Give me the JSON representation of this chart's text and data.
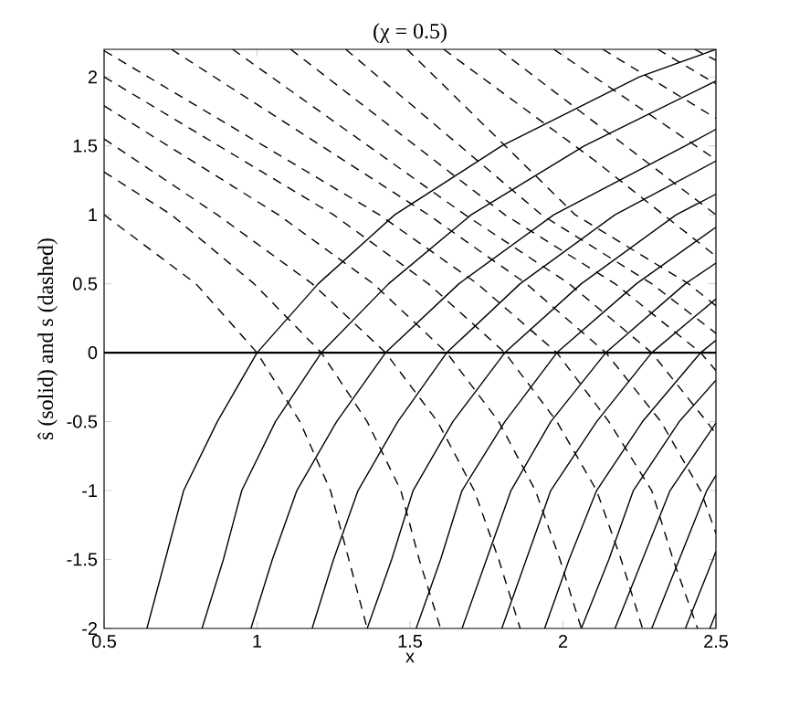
{
  "chart_data": {
    "type": "line",
    "title": "(χ = 0.5)",
    "xlabel": "x",
    "ylabel": "ŝ (solid) and s (dashed)",
    "xlim": [
      0.5,
      2.5
    ],
    "ylim": [
      -2,
      2.2
    ],
    "xticks": [
      0.5,
      1,
      1.5,
      2,
      2.5
    ],
    "yticks": [
      -2,
      -1.5,
      -1,
      -0.5,
      0,
      0.5,
      1,
      1.5,
      2
    ],
    "ref_lines": [
      {
        "axis": "y",
        "value": 0,
        "color": "#000000"
      }
    ],
    "series": [
      {
        "color": "#000000",
        "line_style": "solid",
        "x": [
          0.64,
          0.7,
          0.76,
          0.87,
          1.0,
          1.2,
          1.45,
          1.8,
          2.25,
          2.5
        ],
        "values": [
          -2,
          -1.5,
          -1,
          -0.5,
          0,
          0.5,
          1,
          1.5,
          2,
          2.2
        ]
      },
      {
        "color": "#000000",
        "line_style": "solid",
        "x": [
          0.82,
          0.89,
          0.95,
          1.06,
          1.21,
          1.43,
          1.7,
          2.07,
          2.5
        ],
        "values": [
          -2,
          -1.5,
          -1,
          -0.5,
          0,
          0.5,
          1,
          1.5,
          1.97
        ]
      },
      {
        "color": "#000000",
        "line_style": "solid",
        "x": [
          0.98,
          1.05,
          1.13,
          1.26,
          1.42,
          1.66,
          1.97,
          2.4,
          2.5
        ],
        "values": [
          -2,
          -1.5,
          -1,
          -0.5,
          0,
          0.5,
          1,
          1.5,
          1.62
        ]
      },
      {
        "color": "#000000",
        "line_style": "solid",
        "x": [
          1.18,
          1.25,
          1.33,
          1.46,
          1.62,
          1.86,
          2.17,
          2.5
        ],
        "values": [
          -2,
          -1.5,
          -1,
          -0.5,
          0,
          0.5,
          1,
          1.39
        ]
      },
      {
        "color": "#000000",
        "line_style": "solid",
        "x": [
          1.36,
          1.44,
          1.51,
          1.64,
          1.81,
          2.06,
          2.37,
          2.5
        ],
        "values": [
          -2,
          -1.5,
          -1,
          -0.5,
          0,
          0.5,
          1,
          1.15
        ]
      },
      {
        "color": "#000000",
        "line_style": "solid",
        "x": [
          1.52,
          1.6,
          1.67,
          1.81,
          1.98,
          2.24,
          2.5
        ],
        "values": [
          -2,
          -1.5,
          -1,
          -0.5,
          0,
          0.5,
          0.91
        ]
      },
      {
        "color": "#000000",
        "line_style": "solid",
        "x": [
          1.67,
          1.75,
          1.83,
          1.96,
          2.14,
          2.4,
          2.5
        ],
        "values": [
          -2,
          -1.5,
          -1,
          -0.5,
          0,
          0.5,
          0.65
        ]
      },
      {
        "color": "#000000",
        "line_style": "solid",
        "x": [
          1.8,
          1.88,
          1.96,
          2.11,
          2.29,
          2.5
        ],
        "values": [
          -2,
          -1.5,
          -1,
          -0.5,
          0,
          0.39
        ]
      },
      {
        "color": "#000000",
        "line_style": "solid",
        "x": [
          1.94,
          2.02,
          2.11,
          2.26,
          2.45,
          2.5
        ],
        "values": [
          -2,
          -1.5,
          -1,
          -0.5,
          0,
          0.09
        ]
      },
      {
        "color": "#000000",
        "line_style": "solid",
        "x": [
          2.06,
          2.15,
          2.23,
          2.38,
          2.5
        ],
        "values": [
          -2,
          -1.5,
          -1,
          -0.5,
          -0.2
        ]
      },
      {
        "color": "#000000",
        "line_style": "solid",
        "x": [
          2.17,
          2.26,
          2.35,
          2.5
        ],
        "values": [
          -2,
          -1.5,
          -1,
          -0.51
        ]
      },
      {
        "color": "#000000",
        "line_style": "solid",
        "x": [
          2.29,
          2.38,
          2.47,
          2.5
        ],
        "values": [
          -2,
          -1.5,
          -1,
          -0.89
        ]
      },
      {
        "color": "#000000",
        "line_style": "solid",
        "x": [
          2.4,
          2.49,
          2.5
        ],
        "values": [
          -2,
          -1.5,
          -1.44
        ]
      },
      {
        "color": "#000000",
        "line_style": "solid",
        "x": [
          2.48,
          2.5
        ],
        "values": [
          -2,
          -1.89
        ]
      },
      {
        "color": "#000000",
        "line_style": "dashed",
        "x": [
          0.5,
          0.8,
          1.0,
          1.14,
          1.24,
          1.3,
          1.36
        ],
        "values": [
          1.0,
          0.5,
          0,
          -0.5,
          -1,
          -1.5,
          -2
        ]
      },
      {
        "color": "#000000",
        "line_style": "dashed",
        "x": [
          0.5,
          0.72,
          0.99,
          1.21,
          1.36,
          1.47,
          1.53,
          1.6
        ],
        "values": [
          1.31,
          1,
          0.5,
          0,
          -0.5,
          -1,
          -1.5,
          -2
        ]
      },
      {
        "color": "#000000",
        "line_style": "dashed",
        "x": [
          0.5,
          0.87,
          1.18,
          1.42,
          1.59,
          1.71,
          1.79,
          1.86
        ],
        "values": [
          1.55,
          1,
          0.5,
          0,
          -0.5,
          -1,
          -1.5,
          -2
        ]
      },
      {
        "color": "#000000",
        "line_style": "dashed",
        "x": [
          0.5,
          1.07,
          1.38,
          1.62,
          1.79,
          1.91,
          1.99,
          2.06
        ],
        "values": [
          1.79,
          1,
          0.5,
          0,
          -0.5,
          -1,
          -1.5,
          -2
        ]
      },
      {
        "color": "#000000",
        "line_style": "dashed",
        "x": [
          0.5,
          1.25,
          1.56,
          1.81,
          1.98,
          2.11,
          2.19,
          2.26
        ],
        "values": [
          2.0,
          1,
          0.5,
          0,
          -0.5,
          -1,
          -1.5,
          -2
        ]
      },
      {
        "color": "#000000",
        "line_style": "dashed",
        "x": [
          0.5,
          1.4,
          1.72,
          1.98,
          2.15,
          2.29,
          2.36,
          2.44
        ],
        "values": [
          2.19,
          1,
          0.5,
          0,
          -0.5,
          -1,
          -1.5,
          -2
        ]
      },
      {
        "color": "#000000",
        "line_style": "dashed",
        "x": [
          0.72,
          1.56,
          1.88,
          2.14,
          2.32,
          2.45,
          2.5
        ],
        "values": [
          2.2,
          1,
          0.5,
          0,
          -0.5,
          -1,
          -1.31
        ]
      },
      {
        "color": "#000000",
        "line_style": "dashed",
        "x": [
          0.92,
          1.68,
          2.02,
          2.29,
          2.47,
          2.5
        ],
        "values": [
          2.2,
          1,
          0.5,
          0,
          -0.5,
          -0.59
        ]
      },
      {
        "color": "#000000",
        "line_style": "dashed",
        "x": [
          1.11,
          1.81,
          2.17,
          2.45,
          2.5
        ],
        "values": [
          2.2,
          1,
          0.5,
          0,
          -0.13
        ]
      },
      {
        "color": "#000000",
        "line_style": "dashed",
        "x": [
          1.29,
          1.93,
          2.29,
          2.5
        ],
        "values": [
          2.2,
          1.0,
          0.5,
          0.14
        ]
      },
      {
        "color": "#000000",
        "line_style": "dashed",
        "x": [
          1.49,
          2.04,
          2.41,
          2.5
        ],
        "values": [
          2.2,
          1.0,
          0.5,
          0.34
        ]
      },
      {
        "color": "#000000",
        "line_style": "dashed",
        "x": [
          1.61,
          2.1,
          2.5
        ],
        "values": [
          2.2,
          1.4,
          0.7
        ]
      },
      {
        "color": "#000000",
        "line_style": "dashed",
        "x": [
          1.79,
          2.5
        ],
        "values": [
          2.2,
          1.0
        ]
      },
      {
        "color": "#000000",
        "line_style": "dashed",
        "x": [
          1.97,
          2.5
        ],
        "values": [
          2.2,
          1.4
        ]
      },
      {
        "color": "#000000",
        "line_style": "dashed",
        "x": [
          2.13,
          2.5
        ],
        "values": [
          2.2,
          1.7
        ]
      },
      {
        "color": "#000000",
        "line_style": "dashed",
        "x": [
          2.31,
          2.5
        ],
        "values": [
          2.2,
          1.95
        ]
      },
      {
        "color": "#000000",
        "line_style": "dashed",
        "x": [
          2.43,
          2.5
        ],
        "values": [
          2.2,
          2.12
        ]
      }
    ]
  }
}
